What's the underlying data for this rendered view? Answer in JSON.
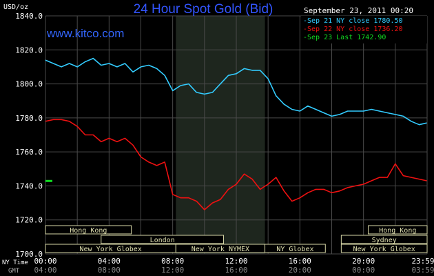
{
  "chart_data": {
    "type": "line",
    "title": "24 Hour Spot Gold (Bid)",
    "y_unit": "USD/oz",
    "website": "www.kitco.com",
    "datetime": "September 23, 2011 00:20",
    "ylim": [
      1700,
      1840
    ],
    "ytick_labels": [
      "1840.0",
      "1820.0",
      "1800.0",
      "1780.0",
      "1760.0",
      "1740.0",
      "1720.0",
      "1700.0"
    ],
    "xtick_labels_ny": [
      "00:00",
      "04:00",
      "08:00",
      "12:00",
      "16:00",
      "20:00",
      "23:59"
    ],
    "xtick_labels_gmt": [
      "04:00",
      "08:00",
      "12:00",
      "16:00",
      "20:00",
      "00:00",
      "03:59"
    ],
    "ny_time_label": "NY Time",
    "gmt_label": "GMT",
    "grid": true,
    "legend_position": "top-right",
    "legend": [
      {
        "label": "Sep 21 NY close 1780.50",
        "color": "#33ccff"
      },
      {
        "label": "Sep 22 NY close 1736.20",
        "color": "#ee1111"
      },
      {
        "label": "Sep 23 Last 1742.90",
        "color": "#11dd22"
      }
    ],
    "x_hours": [
      0.0,
      0.5,
      1.0,
      1.5,
      2.0,
      2.5,
      3.0,
      3.5,
      4.0,
      4.5,
      5.0,
      5.5,
      6.0,
      6.5,
      7.0,
      7.5,
      8.0,
      8.5,
      9.0,
      9.5,
      10.0,
      10.5,
      11.0,
      11.5,
      12.0,
      12.5,
      13.0,
      13.5,
      14.0,
      14.5,
      15.0,
      15.5,
      16.0,
      16.5,
      17.0,
      17.5,
      18.0,
      18.5,
      19.0,
      19.5,
      20.0,
      20.5,
      21.0,
      21.5,
      22.0,
      22.5,
      23.0,
      23.5,
      23.98
    ],
    "series": [
      {
        "name": "Sep 21 NY close 1780.50",
        "color": "#33ccff",
        "values": [
          1814,
          1812,
          1810,
          1812,
          1810,
          1813,
          1815,
          1811,
          1812,
          1810,
          1812,
          1807,
          1810,
          1811,
          1809,
          1805,
          1796,
          1799,
          1800,
          1795,
          1794,
          1795,
          1800,
          1805,
          1806,
          1809,
          1808,
          1808,
          1803,
          1793,
          1788,
          1785,
          1784,
          1787,
          1785,
          1783,
          1781,
          1782,
          1784,
          1784,
          1784,
          1785,
          1784,
          1783,
          1782,
          1781,
          1778,
          1776,
          1777
        ]
      },
      {
        "name": "Sep 22 NY close 1736.20",
        "color": "#ee1111",
        "values": [
          1778,
          1779,
          1779,
          1778,
          1775,
          1770,
          1770,
          1766,
          1768,
          1766,
          1768,
          1764,
          1757,
          1754,
          1752,
          1754,
          1735,
          1733,
          1733,
          1731,
          1726,
          1730,
          1732,
          1738,
          1741,
          1747,
          1744,
          1738,
          1741,
          1745,
          1737,
          1731,
          1733,
          1736,
          1738,
          1738,
          1736,
          1737,
          1739,
          1740,
          1741,
          1743,
          1745,
          1745,
          1753,
          1746,
          1745,
          1744,
          1743
        ]
      },
      {
        "name": "Sep 23 Last 1742.90",
        "color": "#11dd22",
        "values": [
          1742.9
        ]
      }
    ],
    "highlight_band_hours": [
      8.2,
      13.8
    ],
    "markets": [
      {
        "label": "Hong Kong",
        "start": 0.0,
        "end": 5.4,
        "row": 0
      },
      {
        "label": "Hong Kong",
        "start": 20.3,
        "end": 24.0,
        "row": 0
      },
      {
        "label": "London",
        "start": 3.5,
        "end": 11.2,
        "row": 1
      },
      {
        "label": "Sydney",
        "start": 18.6,
        "end": 24.0,
        "row": 1
      },
      {
        "label": "New York Globex",
        "start": 0.0,
        "end": 8.2,
        "row": 2
      },
      {
        "label": "New York NYMEX",
        "start": 8.2,
        "end": 13.8,
        "row": 2
      },
      {
        "label": "NY Globex",
        "start": 13.8,
        "end": 17.6,
        "row": 2
      },
      {
        "label": "New York Globex",
        "start": 18.6,
        "end": 24.0,
        "row": 2
      }
    ]
  }
}
